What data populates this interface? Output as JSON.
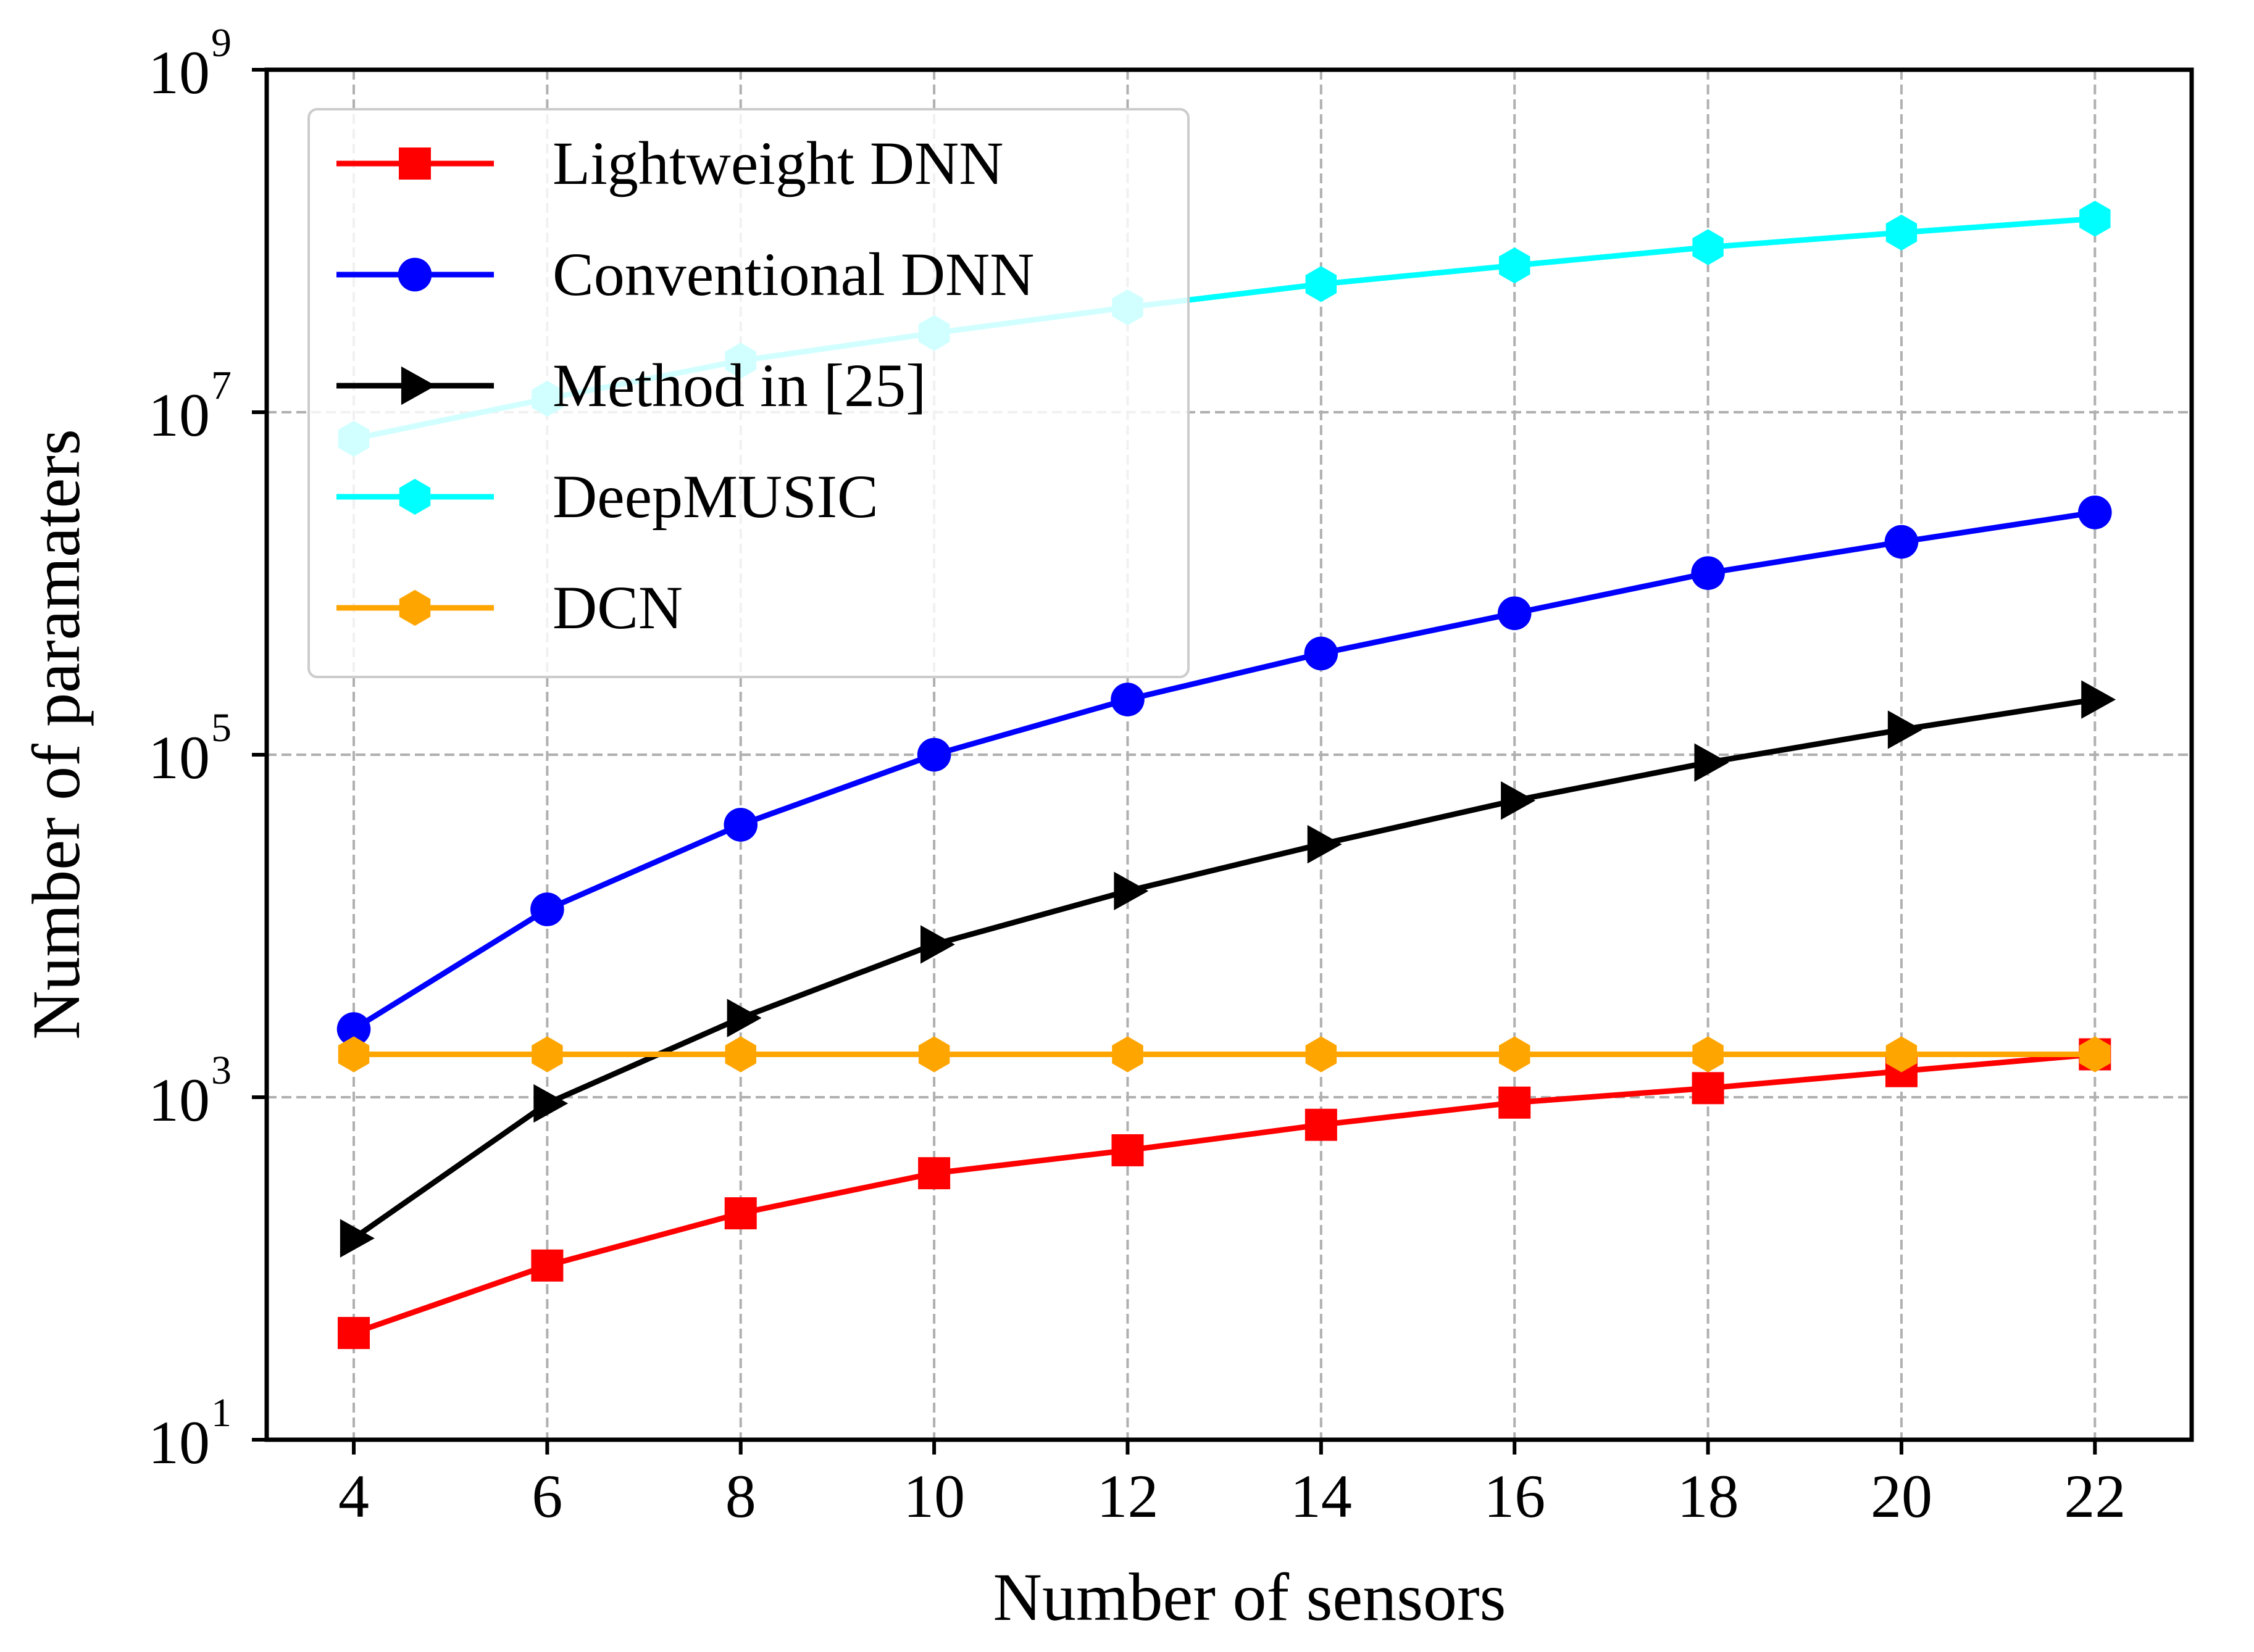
{
  "chart_data": {
    "type": "line",
    "title": "",
    "xlabel": "Number of sensors",
    "ylabel": "Number of paramaters",
    "yscale": "log",
    "xlim": [
      3.1,
      23.0
    ],
    "ylim": [
      10,
      1000000000
    ],
    "x": [
      4,
      6,
      8,
      10,
      12,
      14,
      16,
      18,
      20,
      22
    ],
    "x_tick_labels": [
      "4",
      "6",
      "8",
      "10",
      "12",
      "14",
      "16",
      "18",
      "20",
      "22"
    ],
    "y_ticks": [
      {
        "value": 10,
        "base": "10",
        "exp": "1"
      },
      {
        "value": 1000,
        "base": "10",
        "exp": "3"
      },
      {
        "value": 100000,
        "base": "10",
        "exp": "5"
      },
      {
        "value": 10000000,
        "base": "10",
        "exp": "7"
      },
      {
        "value": 1000000000,
        "base": "10",
        "exp": "9"
      }
    ],
    "grid": true,
    "legend_position": "top-left",
    "series": [
      {
        "name": "Lightweight DNN",
        "color": "#ff0000",
        "marker": "square",
        "values": [
          42,
          104,
          210,
          360,
          490,
          690,
          930,
          1130,
          1420,
          1780
        ]
      },
      {
        "name": "Conventional DNN",
        "color": "#0000ff",
        "marker": "circle",
        "values": [
          2500,
          12500,
          39000,
          100000,
          210000,
          390000,
          670000,
          1150000,
          1750000,
          2600000
        ]
      },
      {
        "name": "Method in [25]",
        "color": "#000000",
        "marker": "triangle-right",
        "values": [
          150,
          920,
          2900,
          7800,
          16000,
          30000,
          54000,
          90000,
          140000,
          210000
        ]
      },
      {
        "name": "DeepMUSIC",
        "color": "#00ffff",
        "marker": "hexagon",
        "values": [
          7000000,
          12000000,
          20000000,
          29000000,
          41000000,
          56000000,
          72000000,
          92000000,
          112000000,
          135000000
        ]
      },
      {
        "name": "DCN",
        "color": "#ffa500",
        "marker": "hexagon",
        "values": [
          1780,
          1780,
          1780,
          1780,
          1780,
          1780,
          1780,
          1780,
          1780,
          1780
        ]
      }
    ]
  }
}
